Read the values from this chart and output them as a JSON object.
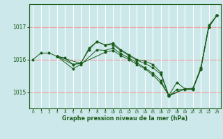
{
  "title": "Graphe pression niveau de la mer (hPa)",
  "bg_color": "#cce8ea",
  "grid_color_h": "#f0a0a0",
  "grid_color_v": "#ffffff",
  "line_color": "#1a5c1a",
  "marker_color": "#1a5c1a",
  "xlim": [
    -0.5,
    23.5
  ],
  "ylim": [
    1014.5,
    1017.7
  ],
  "yticks": [
    1015,
    1016,
    1017
  ],
  "xticks": [
    0,
    1,
    2,
    3,
    4,
    5,
    6,
    7,
    8,
    9,
    10,
    11,
    12,
    13,
    14,
    15,
    16,
    17,
    18,
    19,
    20,
    21,
    22,
    23
  ],
  "series": [
    [
      [
        0,
        1016.0
      ],
      [
        1,
        1016.2
      ],
      [
        2,
        1016.2
      ],
      [
        3,
        1016.1
      ],
      [
        4,
        1016.05
      ],
      [
        5,
        1015.85
      ],
      [
        6,
        1015.9
      ],
      [
        7,
        1016.3
      ],
      [
        8,
        1016.55
      ],
      [
        9,
        1016.45
      ],
      [
        10,
        1016.5
      ],
      [
        11,
        1016.3
      ],
      [
        12,
        1016.15
      ],
      [
        13,
        1016.0
      ],
      [
        14,
        1015.95
      ],
      [
        15,
        1015.85
      ],
      [
        16,
        1015.6
      ],
      [
        17,
        1014.9
      ],
      [
        18,
        1015.3
      ],
      [
        19,
        1015.1
      ],
      [
        20,
        1015.1
      ],
      [
        21,
        1015.75
      ],
      [
        22,
        1017.05
      ],
      [
        23,
        1017.35
      ]
    ],
    [
      [
        3,
        1016.1
      ],
      [
        5,
        1015.85
      ],
      [
        6,
        1015.88
      ],
      [
        7,
        1016.35
      ],
      [
        8,
        1016.55
      ],
      [
        9,
        1016.45
      ],
      [
        10,
        1016.45
      ],
      [
        11,
        1016.28
      ],
      [
        12,
        1016.12
      ],
      [
        13,
        1015.98
      ],
      [
        14,
        1015.88
      ],
      [
        15,
        1015.75
      ],
      [
        16,
        1015.55
      ],
      [
        17,
        1014.88
      ],
      [
        19,
        1015.1
      ],
      [
        20,
        1015.1
      ],
      [
        21,
        1015.72
      ],
      [
        22,
        1017.0
      ],
      [
        23,
        1017.35
      ]
    ],
    [
      [
        3,
        1016.1
      ],
      [
        5,
        1015.72
      ],
      [
        6,
        1015.85
      ],
      [
        8,
        1016.3
      ],
      [
        9,
        1016.28
      ],
      [
        10,
        1016.35
      ],
      [
        11,
        1016.18
      ],
      [
        12,
        1016.05
      ],
      [
        13,
        1015.9
      ],
      [
        14,
        1015.75
      ],
      [
        15,
        1015.58
      ],
      [
        16,
        1015.35
      ],
      [
        17,
        1014.88
      ],
      [
        18,
        1015.08
      ],
      [
        19,
        1015.08
      ],
      [
        20,
        1015.08
      ],
      [
        21,
        1015.7
      ],
      [
        22,
        1017.0
      ],
      [
        23,
        1017.35
      ]
    ],
    [
      [
        3,
        1016.1
      ],
      [
        6,
        1015.88
      ],
      [
        9,
        1016.22
      ],
      [
        10,
        1016.28
      ],
      [
        11,
        1016.12
      ],
      [
        12,
        1016.0
      ],
      [
        13,
        1015.85
      ],
      [
        14,
        1015.72
      ],
      [
        15,
        1015.52
      ],
      [
        16,
        1015.28
      ],
      [
        17,
        1014.9
      ],
      [
        19,
        1015.1
      ],
      [
        20,
        1015.12
      ],
      [
        21,
        1015.72
      ],
      [
        22,
        1017.0
      ],
      [
        23,
        1017.35
      ]
    ]
  ]
}
